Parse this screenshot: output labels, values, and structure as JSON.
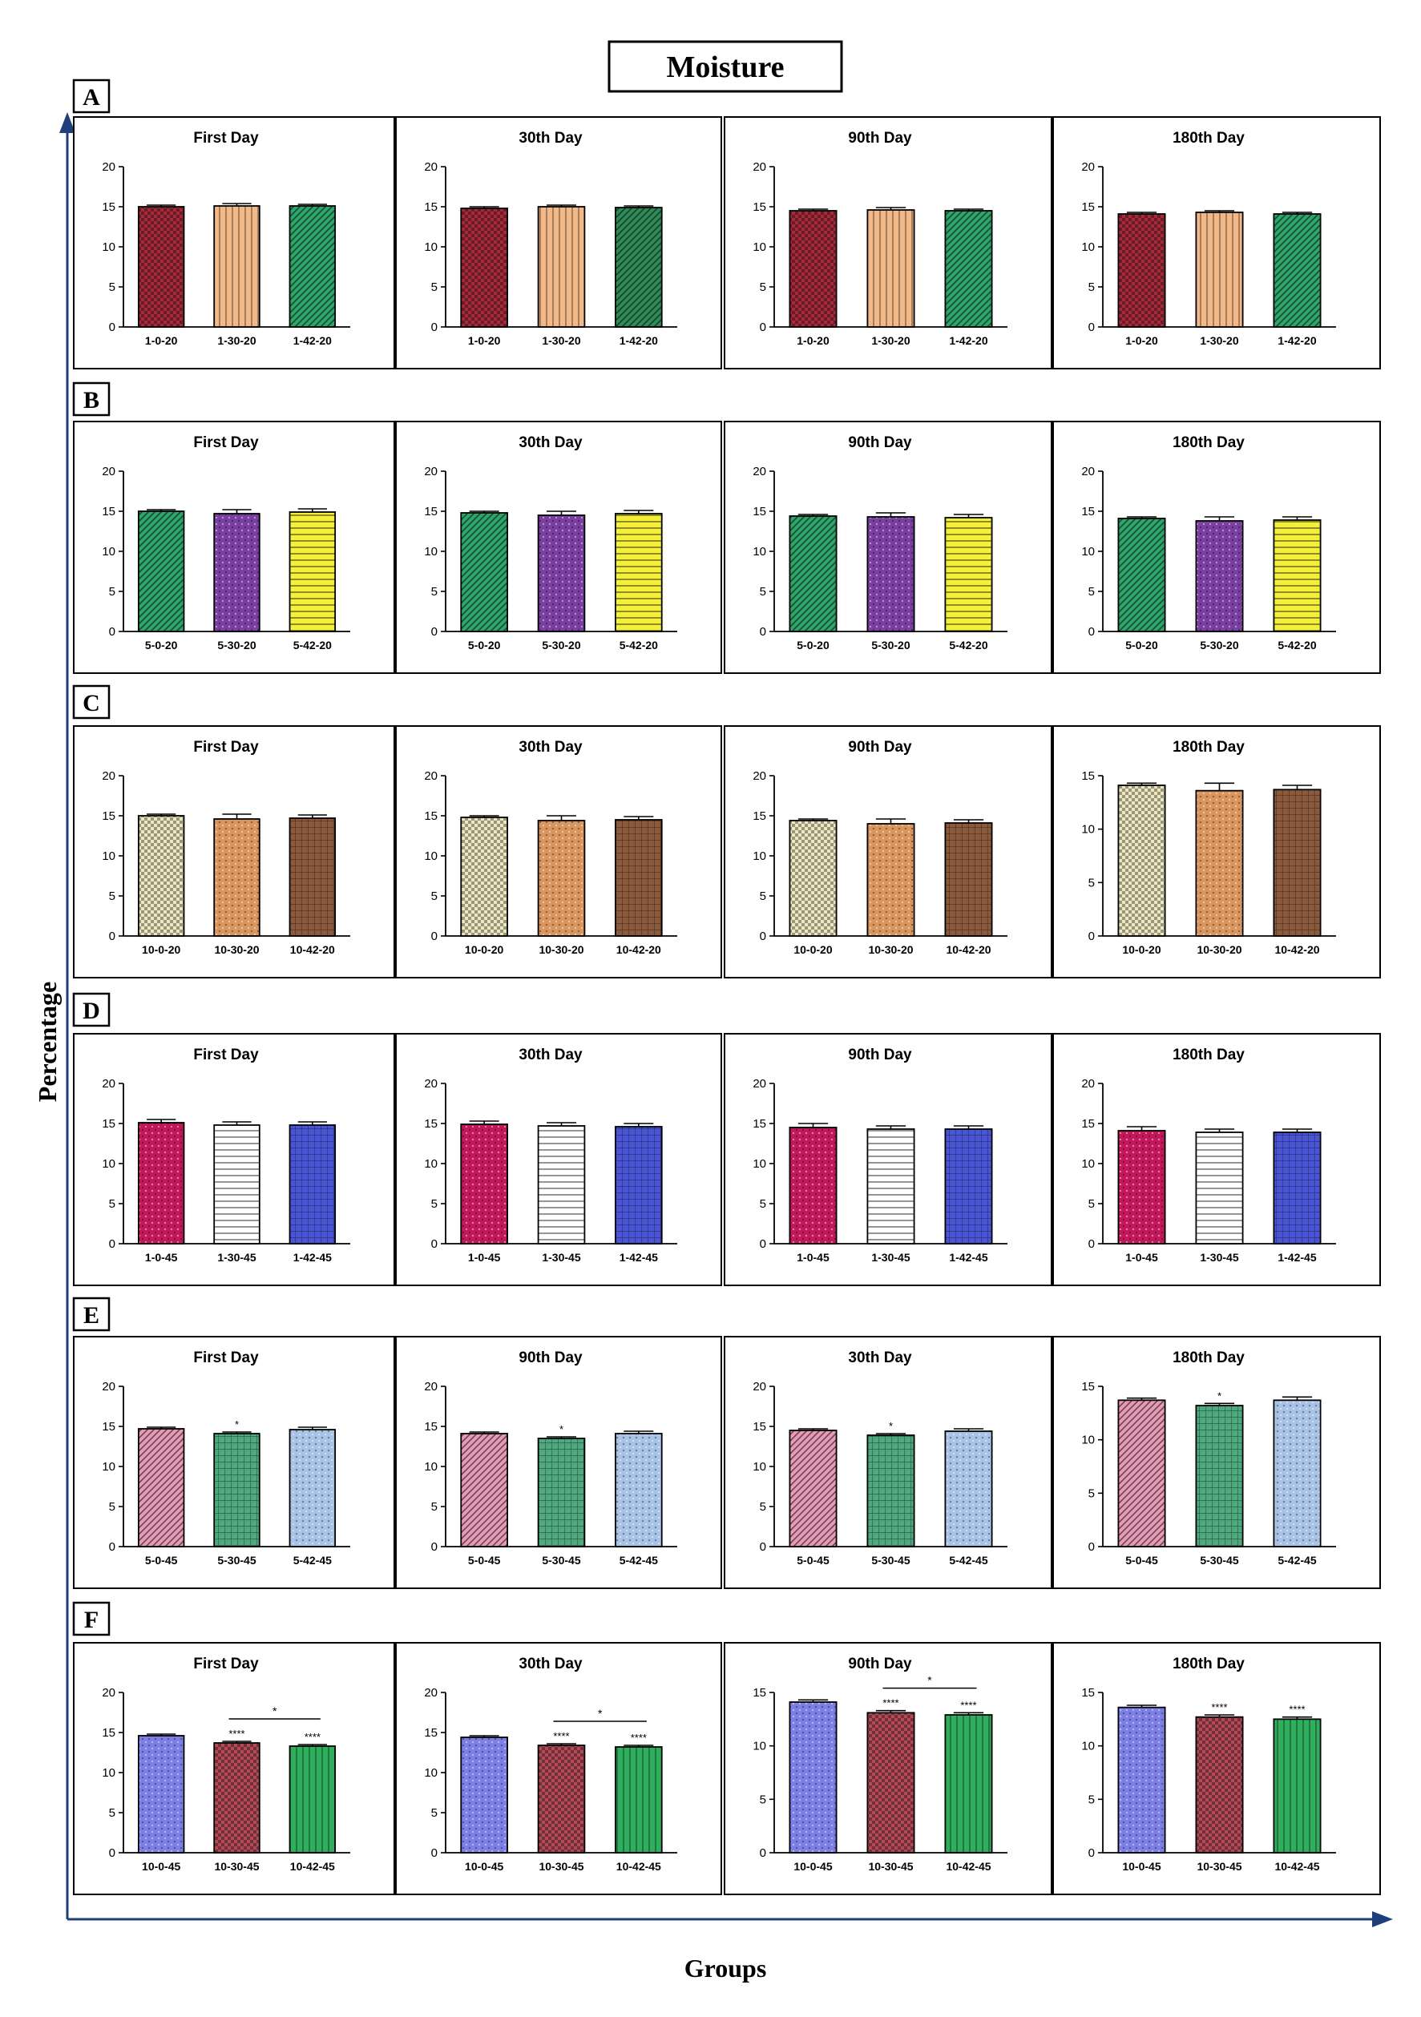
{
  "figure": {
    "title": "Moisture",
    "ylabel": "Percentage",
    "xlabel": "Groups",
    "colors": {
      "red": "#A52A3A",
      "tan": "#F2B888",
      "green": "#2EA56B",
      "dkgreen": "#2E8B57",
      "purple": "#7A3FA0",
      "yellow": "#F4EF3A",
      "cream": "#EDE6BE",
      "orange": "#D9955E",
      "brown": "#8B5A3C",
      "crimson": "#C2185B",
      "white": "#FFFFFF",
      "blue": "#4A55D6",
      "pink": "#E79AB6",
      "teal": "#4FA87E",
      "ltblue": "#A9C3E6",
      "periwinkle": "#7D7FE6",
      "maroon": "#B24A58",
      "vgreen": "#2FAF5E"
    }
  },
  "chart_data": [
    {
      "type": "bar",
      "row": "A",
      "title": "First Day",
      "categories": [
        "1-0-20",
        "1-30-20",
        "1-42-20"
      ],
      "values": [
        15.0,
        15.1,
        15.1
      ],
      "errors": [
        0.2,
        0.3,
        0.2
      ],
      "ylim": [
        0,
        20
      ],
      "yticks": [
        0,
        5,
        10,
        15,
        20
      ],
      "colors": [
        "red",
        "tan",
        "green"
      ],
      "patterns": [
        "check",
        "vlines",
        "diag"
      ],
      "annotations": [
        "",
        "",
        ""
      ],
      "bracket": null
    },
    {
      "type": "bar",
      "row": "A",
      "title": "30th Day",
      "categories": [
        "1-0-20",
        "1-30-20",
        "1-42-20"
      ],
      "values": [
        14.8,
        15.0,
        14.9
      ],
      "errors": [
        0.2,
        0.2,
        0.2
      ],
      "ylim": [
        0,
        20
      ],
      "yticks": [
        0,
        5,
        10,
        15,
        20
      ],
      "colors": [
        "red",
        "tan",
        "dkgreen"
      ],
      "patterns": [
        "check",
        "vlines",
        "diag"
      ],
      "annotations": [
        "",
        "",
        ""
      ],
      "bracket": null
    },
    {
      "type": "bar",
      "row": "A",
      "title": "90th Day",
      "categories": [
        "1-0-20",
        "1-30-20",
        "1-42-20"
      ],
      "values": [
        14.5,
        14.6,
        14.5
      ],
      "errors": [
        0.2,
        0.3,
        0.2
      ],
      "ylim": [
        0,
        20
      ],
      "yticks": [
        0,
        5,
        10,
        15,
        20
      ],
      "colors": [
        "red",
        "tan",
        "green"
      ],
      "patterns": [
        "check",
        "vlines",
        "diag"
      ],
      "annotations": [
        "",
        "",
        ""
      ],
      "bracket": null
    },
    {
      "type": "bar",
      "row": "A",
      "title": "180th Day",
      "categories": [
        "1-0-20",
        "1-30-20",
        "1-42-20"
      ],
      "values": [
        14.1,
        14.3,
        14.1
      ],
      "errors": [
        0.2,
        0.2,
        0.2
      ],
      "ylim": [
        0,
        20
      ],
      "yticks": [
        0,
        5,
        10,
        15,
        20
      ],
      "colors": [
        "red",
        "tan",
        "green"
      ],
      "patterns": [
        "check",
        "vlines",
        "diag"
      ],
      "annotations": [
        "",
        "",
        ""
      ],
      "bracket": null
    },
    {
      "type": "bar",
      "row": "B",
      "title": "First Day",
      "categories": [
        "5-0-20",
        "5-30-20",
        "5-42-20"
      ],
      "values": [
        15.0,
        14.7,
        14.9
      ],
      "errors": [
        0.2,
        0.5,
        0.4
      ],
      "ylim": [
        0,
        20
      ],
      "yticks": [
        0,
        5,
        10,
        15,
        20
      ],
      "colors": [
        "green",
        "purple",
        "yellow"
      ],
      "patterns": [
        "diag",
        "dots",
        "hlines"
      ],
      "annotations": [
        "",
        "",
        ""
      ],
      "bracket": null
    },
    {
      "type": "bar",
      "row": "B",
      "title": "30th Day",
      "categories": [
        "5-0-20",
        "5-30-20",
        "5-42-20"
      ],
      "values": [
        14.8,
        14.5,
        14.7
      ],
      "errors": [
        0.2,
        0.5,
        0.4
      ],
      "ylim": [
        0,
        20
      ],
      "yticks": [
        0,
        5,
        10,
        15,
        20
      ],
      "colors": [
        "green",
        "purple",
        "yellow"
      ],
      "patterns": [
        "diag",
        "dots",
        "hlines"
      ],
      "annotations": [
        "",
        "",
        ""
      ],
      "bracket": null
    },
    {
      "type": "bar",
      "row": "B",
      "title": "90th Day",
      "categories": [
        "5-0-20",
        "5-30-20",
        "5-42-20"
      ],
      "values": [
        14.4,
        14.3,
        14.2
      ],
      "errors": [
        0.2,
        0.5,
        0.4
      ],
      "ylim": [
        0,
        20
      ],
      "yticks": [
        0,
        5,
        10,
        15,
        20
      ],
      "colors": [
        "green",
        "purple",
        "yellow"
      ],
      "patterns": [
        "diag",
        "dots",
        "hlines"
      ],
      "annotations": [
        "",
        "",
        ""
      ],
      "bracket": null
    },
    {
      "type": "bar",
      "row": "B",
      "title": "180th Day",
      "categories": [
        "5-0-20",
        "5-30-20",
        "5-42-20"
      ],
      "values": [
        14.1,
        13.8,
        13.9
      ],
      "errors": [
        0.2,
        0.5,
        0.4
      ],
      "ylim": [
        0,
        20
      ],
      "yticks": [
        0,
        5,
        10,
        15,
        20
      ],
      "colors": [
        "green",
        "purple",
        "yellow"
      ],
      "patterns": [
        "diag",
        "dots",
        "hlines"
      ],
      "annotations": [
        "",
        "",
        ""
      ],
      "bracket": null
    },
    {
      "type": "bar",
      "row": "C",
      "title": "First Day",
      "categories": [
        "10-0-20",
        "10-30-20",
        "10-42-20"
      ],
      "values": [
        15.0,
        14.6,
        14.7
      ],
      "errors": [
        0.2,
        0.6,
        0.4
      ],
      "ylim": [
        0,
        20
      ],
      "yticks": [
        0,
        5,
        10,
        15,
        20
      ],
      "colors": [
        "cream",
        "orange",
        "brown"
      ],
      "patterns": [
        "check",
        "dots",
        "grid"
      ],
      "annotations": [
        "",
        "",
        ""
      ],
      "bracket": null
    },
    {
      "type": "bar",
      "row": "C",
      "title": "30th Day",
      "categories": [
        "10-0-20",
        "10-30-20",
        "10-42-20"
      ],
      "values": [
        14.8,
        14.4,
        14.5
      ],
      "errors": [
        0.2,
        0.6,
        0.4
      ],
      "ylim": [
        0,
        20
      ],
      "yticks": [
        0,
        5,
        10,
        15,
        20
      ],
      "colors": [
        "cream",
        "orange",
        "brown"
      ],
      "patterns": [
        "check",
        "dots",
        "grid"
      ],
      "annotations": [
        "",
        "",
        ""
      ],
      "bracket": null
    },
    {
      "type": "bar",
      "row": "C",
      "title": "90th Day",
      "categories": [
        "10-0-20",
        "10-30-20",
        "10-42-20"
      ],
      "values": [
        14.4,
        14.0,
        14.1
      ],
      "errors": [
        0.2,
        0.6,
        0.4
      ],
      "ylim": [
        0,
        20
      ],
      "yticks": [
        0,
        5,
        10,
        15,
        20
      ],
      "colors": [
        "cream",
        "orange",
        "brown"
      ],
      "patterns": [
        "check",
        "dots",
        "grid"
      ],
      "annotations": [
        "",
        "",
        ""
      ],
      "bracket": null
    },
    {
      "type": "bar",
      "row": "C",
      "title": "180th Day",
      "categories": [
        "10-0-20",
        "10-30-20",
        "10-42-20"
      ],
      "values": [
        14.1,
        13.6,
        13.7
      ],
      "errors": [
        0.2,
        0.7,
        0.4
      ],
      "ylim": [
        0,
        15
      ],
      "yticks": [
        0,
        5,
        10,
        15
      ],
      "colors": [
        "cream",
        "orange",
        "brown"
      ],
      "patterns": [
        "check",
        "dots",
        "grid"
      ],
      "annotations": [
        "",
        "",
        ""
      ],
      "bracket": null
    },
    {
      "type": "bar",
      "row": "D",
      "title": "First Day",
      "categories": [
        "1-0-45",
        "1-30-45",
        "1-42-45"
      ],
      "values": [
        15.1,
        14.8,
        14.8
      ],
      "errors": [
        0.4,
        0.4,
        0.4
      ],
      "ylim": [
        0,
        20
      ],
      "yticks": [
        0,
        5,
        10,
        15,
        20
      ],
      "colors": [
        "crimson",
        "white",
        "blue"
      ],
      "patterns": [
        "dots",
        "hlines",
        "grid"
      ],
      "annotations": [
        "",
        "",
        ""
      ],
      "bracket": null
    },
    {
      "type": "bar",
      "row": "D",
      "title": "30th Day",
      "categories": [
        "1-0-45",
        "1-30-45",
        "1-42-45"
      ],
      "values": [
        14.9,
        14.7,
        14.6
      ],
      "errors": [
        0.4,
        0.4,
        0.4
      ],
      "ylim": [
        0,
        20
      ],
      "yticks": [
        0,
        5,
        10,
        15,
        20
      ],
      "colors": [
        "crimson",
        "white",
        "blue"
      ],
      "patterns": [
        "dots",
        "hlines",
        "grid"
      ],
      "annotations": [
        "",
        "",
        ""
      ],
      "bracket": null
    },
    {
      "type": "bar",
      "row": "D",
      "title": "90th Day",
      "categories": [
        "1-0-45",
        "1-30-45",
        "1-42-45"
      ],
      "values": [
        14.5,
        14.3,
        14.3
      ],
      "errors": [
        0.5,
        0.4,
        0.4
      ],
      "ylim": [
        0,
        20
      ],
      "yticks": [
        0,
        5,
        10,
        15,
        20
      ],
      "colors": [
        "crimson",
        "white",
        "blue"
      ],
      "patterns": [
        "dots",
        "hlines",
        "grid"
      ],
      "annotations": [
        "",
        "",
        ""
      ],
      "bracket": null
    },
    {
      "type": "bar",
      "row": "D",
      "title": "180th Day",
      "categories": [
        "1-0-45",
        "1-30-45",
        "1-42-45"
      ],
      "values": [
        14.1,
        13.9,
        13.9
      ],
      "errors": [
        0.5,
        0.4,
        0.4
      ],
      "ylim": [
        0,
        20
      ],
      "yticks": [
        0,
        5,
        10,
        15,
        20
      ],
      "colors": [
        "crimson",
        "white",
        "blue"
      ],
      "patterns": [
        "dots",
        "hlines",
        "grid"
      ],
      "annotations": [
        "",
        "",
        ""
      ],
      "bracket": null
    },
    {
      "type": "bar",
      "row": "E",
      "title": "First Day",
      "categories": [
        "5-0-45",
        "5-30-45",
        "5-42-45"
      ],
      "values": [
        14.7,
        14.1,
        14.6
      ],
      "errors": [
        0.2,
        0.2,
        0.3
      ],
      "ylim": [
        0,
        20
      ],
      "yticks": [
        0,
        5,
        10,
        15,
        20
      ],
      "colors": [
        "pink",
        "teal",
        "ltblue"
      ],
      "patterns": [
        "diag",
        "grid",
        "dots"
      ],
      "annotations": [
        "",
        "*",
        ""
      ],
      "bracket": null
    },
    {
      "type": "bar",
      "row": "E",
      "title": "90th Day",
      "categories": [
        "5-0-45",
        "5-30-45",
        "5-42-45"
      ],
      "values": [
        14.1,
        13.5,
        14.1
      ],
      "errors": [
        0.2,
        0.2,
        0.3
      ],
      "ylim": [
        0,
        20
      ],
      "yticks": [
        0,
        5,
        10,
        15,
        20
      ],
      "colors": [
        "pink",
        "teal",
        "ltblue"
      ],
      "patterns": [
        "diag",
        "grid",
        "dots"
      ],
      "annotations": [
        "",
        "*",
        ""
      ],
      "bracket": null
    },
    {
      "type": "bar",
      "row": "E",
      "title": "30th Day",
      "categories": [
        "5-0-45",
        "5-30-45",
        "5-42-45"
      ],
      "values": [
        14.5,
        13.9,
        14.4
      ],
      "errors": [
        0.2,
        0.2,
        0.3
      ],
      "ylim": [
        0,
        20
      ],
      "yticks": [
        0,
        5,
        10,
        15,
        20
      ],
      "colors": [
        "pink",
        "teal",
        "ltblue"
      ],
      "patterns": [
        "diag",
        "grid",
        "dots"
      ],
      "annotations": [
        "",
        "*",
        ""
      ],
      "bracket": null
    },
    {
      "type": "bar",
      "row": "E",
      "title": "180th Day",
      "categories": [
        "5-0-45",
        "5-30-45",
        "5-42-45"
      ],
      "values": [
        13.7,
        13.2,
        13.7
      ],
      "errors": [
        0.2,
        0.2,
        0.3
      ],
      "ylim": [
        0,
        15
      ],
      "yticks": [
        0,
        5,
        10,
        15
      ],
      "colors": [
        "pink",
        "teal",
        "ltblue"
      ],
      "patterns": [
        "diag",
        "grid",
        "dots"
      ],
      "annotations": [
        "",
        "*",
        ""
      ],
      "bracket": null
    },
    {
      "type": "bar",
      "row": "F",
      "title": "First Day",
      "categories": [
        "10-0-45",
        "10-30-45",
        "10-42-45"
      ],
      "values": [
        14.6,
        13.7,
        13.3
      ],
      "errors": [
        0.2,
        0.2,
        0.2
      ],
      "ylim": [
        0,
        20
      ],
      "yticks": [
        0,
        5,
        10,
        15,
        20
      ],
      "colors": [
        "periwinkle",
        "maroon",
        "vgreen"
      ],
      "patterns": [
        "dots",
        "check",
        "vlines"
      ],
      "annotations": [
        "",
        "****",
        "****"
      ],
      "bracket": {
        "from": 1,
        "to": 2,
        "label": "*"
      }
    },
    {
      "type": "bar",
      "row": "F",
      "title": "30th Day",
      "categories": [
        "10-0-45",
        "10-30-45",
        "10-42-45"
      ],
      "values": [
        14.4,
        13.4,
        13.2
      ],
      "errors": [
        0.2,
        0.2,
        0.2
      ],
      "ylim": [
        0,
        20
      ],
      "yticks": [
        0,
        5,
        10,
        15,
        20
      ],
      "colors": [
        "periwinkle",
        "maroon",
        "vgreen"
      ],
      "patterns": [
        "dots",
        "check",
        "vlines"
      ],
      "annotations": [
        "",
        "****",
        "****"
      ],
      "bracket": {
        "from": 1,
        "to": 2,
        "label": "*"
      }
    },
    {
      "type": "bar",
      "row": "F",
      "title": "90th Day",
      "categories": [
        "10-0-45",
        "10-30-45",
        "10-42-45"
      ],
      "values": [
        14.1,
        13.1,
        12.9
      ],
      "errors": [
        0.2,
        0.2,
        0.2
      ],
      "ylim": [
        0,
        15
      ],
      "yticks": [
        0,
        5,
        10,
        15
      ],
      "colors": [
        "periwinkle",
        "maroon",
        "vgreen"
      ],
      "patterns": [
        "dots",
        "check",
        "vlines"
      ],
      "annotations": [
        "",
        "****",
        "****"
      ],
      "bracket": {
        "from": 1,
        "to": 2,
        "label": "*"
      }
    },
    {
      "type": "bar",
      "row": "F",
      "title": "180th Day",
      "categories": [
        "10-0-45",
        "10-30-45",
        "10-42-45"
      ],
      "values": [
        13.6,
        12.7,
        12.5
      ],
      "errors": [
        0.2,
        0.2,
        0.2
      ],
      "ylim": [
        0,
        15
      ],
      "yticks": [
        0,
        5,
        10,
        15
      ],
      "colors": [
        "periwinkle",
        "maroon",
        "vgreen"
      ],
      "patterns": [
        "dots",
        "check",
        "vlines"
      ],
      "annotations": [
        "",
        "****",
        "****"
      ],
      "bracket": null
    }
  ]
}
